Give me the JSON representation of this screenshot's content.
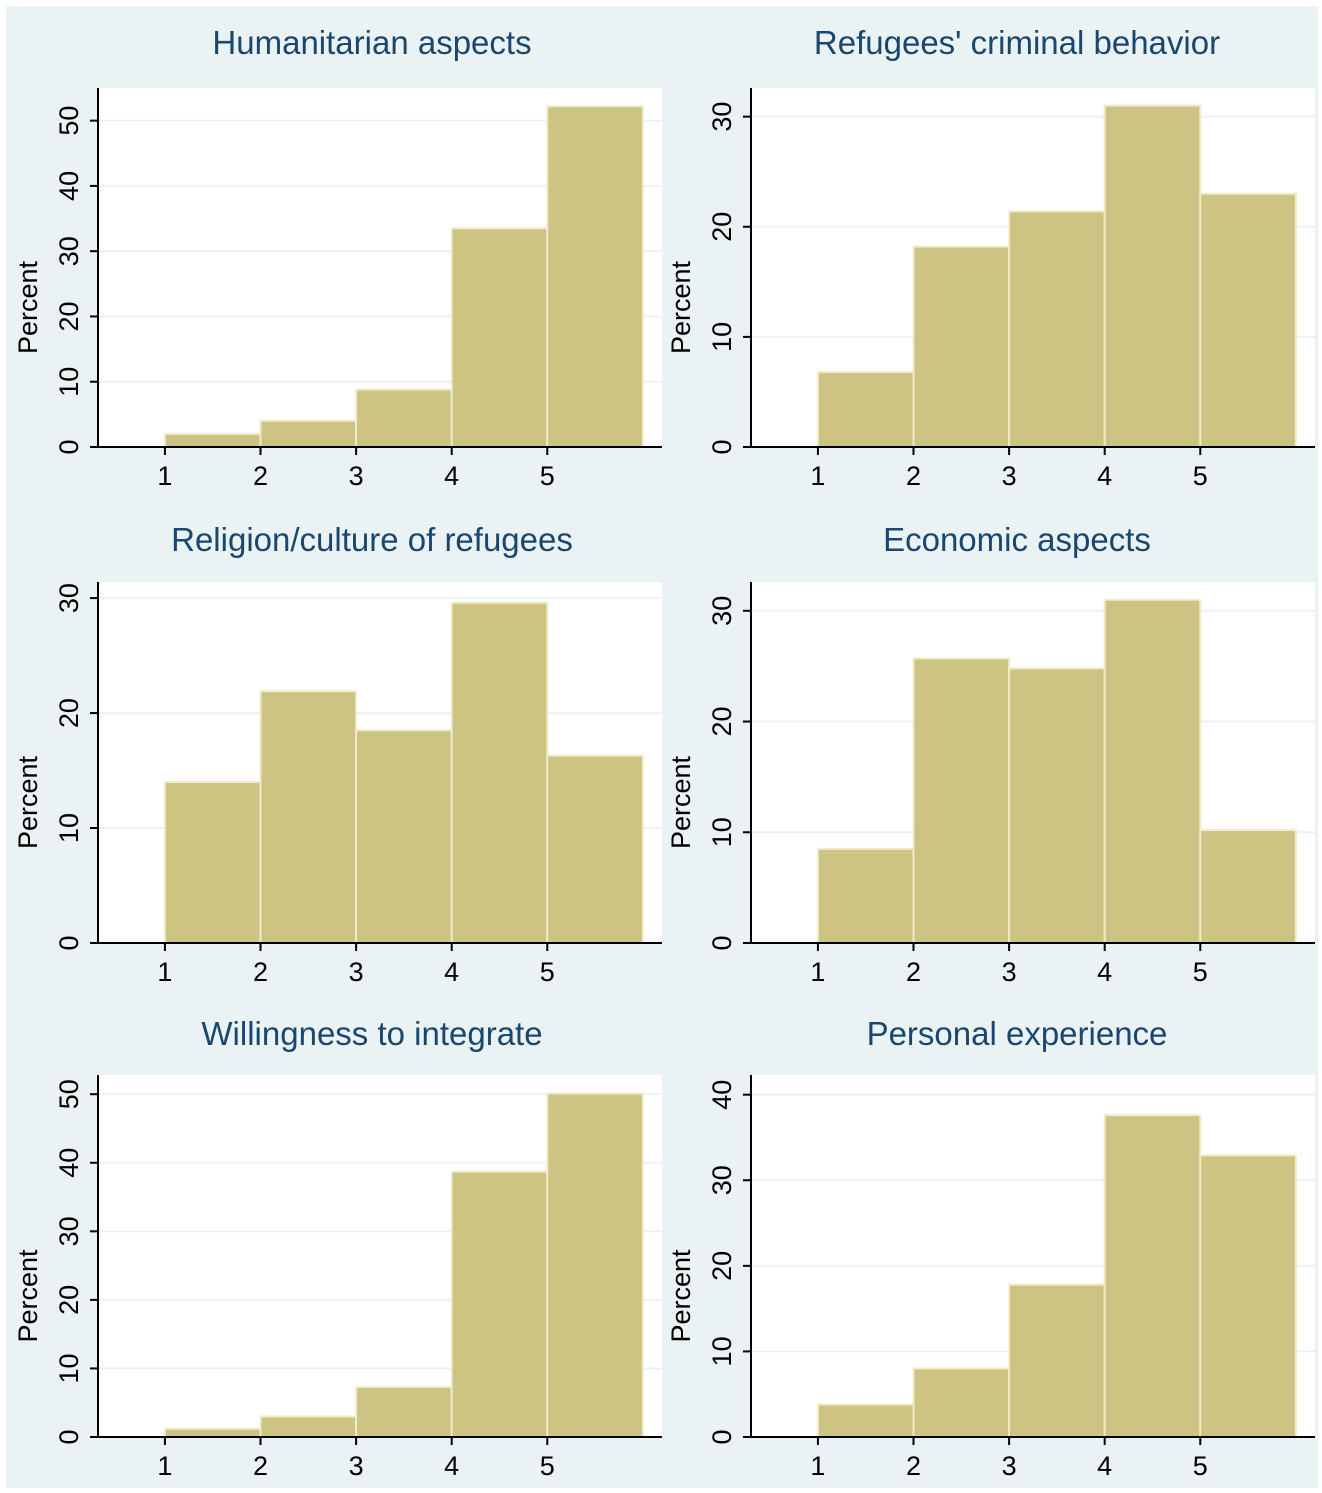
{
  "chart_data": [
    {
      "type": "bar",
      "title": "Humanitarian aspects",
      "ylabel": "Percent",
      "xlabel": "",
      "bins": [
        [
          1,
          2
        ],
        [
          2,
          3
        ],
        [
          3,
          4
        ],
        [
          4,
          5
        ],
        [
          5,
          6
        ]
      ],
      "values": [
        2.0,
        4.0,
        8.8,
        33.5,
        52.2
      ],
      "xticks": [
        1,
        2,
        3,
        4,
        5
      ],
      "yticks": [
        0,
        10,
        20,
        30,
        40,
        50
      ],
      "xlim": [
        0.3,
        6.2
      ],
      "ylim": [
        0,
        55
      ],
      "grid": true,
      "colors": {
        "bar": "#cdc383",
        "bar_edge": "#f0ebc8"
      }
    },
    {
      "type": "bar",
      "title": "Refugees' criminal behavior",
      "ylabel": "Percent",
      "xlabel": "",
      "bins": [
        [
          1,
          2
        ],
        [
          2,
          3
        ],
        [
          3,
          4
        ],
        [
          4,
          5
        ],
        [
          5,
          6
        ]
      ],
      "values": [
        6.8,
        18.2,
        21.4,
        31.0,
        23.0
      ],
      "xticks": [
        1,
        2,
        3,
        4,
        5
      ],
      "yticks": [
        0,
        10,
        20,
        30
      ],
      "xlim": [
        0.3,
        6.2
      ],
      "ylim": [
        0,
        32.6
      ],
      "grid": true,
      "colors": {
        "bar": "#cdc383",
        "bar_edge": "#f0ebc8"
      }
    },
    {
      "type": "bar",
      "title": "Religion/culture of refugees",
      "ylabel": "Percent",
      "xlabel": "",
      "bins": [
        [
          1,
          2
        ],
        [
          2,
          3
        ],
        [
          3,
          4
        ],
        [
          4,
          5
        ],
        [
          5,
          6
        ]
      ],
      "values": [
        14.0,
        21.9,
        18.5,
        29.6,
        16.3
      ],
      "xticks": [
        1,
        2,
        3,
        4,
        5
      ],
      "yticks": [
        0,
        10,
        20,
        30
      ],
      "xlim": [
        0.3,
        6.2
      ],
      "ylim": [
        0,
        31.4
      ],
      "grid": true,
      "colors": {
        "bar": "#cdc383",
        "bar_edge": "#f0ebc8"
      }
    },
    {
      "type": "bar",
      "title": "Economic aspects",
      "ylabel": "Percent",
      "xlabel": "",
      "bins": [
        [
          1,
          2
        ],
        [
          2,
          3
        ],
        [
          3,
          4
        ],
        [
          4,
          5
        ],
        [
          5,
          6
        ]
      ],
      "values": [
        8.5,
        25.7,
        24.8,
        31.0,
        10.2
      ],
      "xticks": [
        1,
        2,
        3,
        4,
        5
      ],
      "yticks": [
        0,
        10,
        20,
        30
      ],
      "xlim": [
        0.3,
        6.2
      ],
      "ylim": [
        0,
        32.6
      ],
      "grid": true,
      "colors": {
        "bar": "#cdc383",
        "bar_edge": "#f0ebc8"
      }
    },
    {
      "type": "bar",
      "title": "Willingness to integrate",
      "ylabel": "Percent",
      "xlabel": "",
      "bins": [
        [
          1,
          2
        ],
        [
          2,
          3
        ],
        [
          3,
          4
        ],
        [
          4,
          5
        ],
        [
          5,
          6
        ]
      ],
      "values": [
        1.2,
        3.0,
        7.3,
        38.7,
        50.1
      ],
      "xticks": [
        1,
        2,
        3,
        4,
        5
      ],
      "yticks": [
        0,
        10,
        20,
        30,
        40,
        50
      ],
      "xlim": [
        0.3,
        6.2
      ],
      "ylim": [
        0,
        52.8
      ],
      "grid": true,
      "colors": {
        "bar": "#cdc383",
        "bar_edge": "#f0ebc8"
      }
    },
    {
      "type": "bar",
      "title": "Personal experience",
      "ylabel": "Percent",
      "xlabel": "",
      "bins": [
        [
          1,
          2
        ],
        [
          2,
          3
        ],
        [
          3,
          4
        ],
        [
          4,
          5
        ],
        [
          5,
          6
        ]
      ],
      "values": [
        3.8,
        8.0,
        17.8,
        37.6,
        32.9
      ],
      "xticks": [
        1,
        2,
        3,
        4,
        5
      ],
      "yticks": [
        0,
        10,
        20,
        30,
        40
      ],
      "xlim": [
        0.3,
        6.2
      ],
      "ylim": [
        0,
        42.3
      ],
      "grid": true,
      "colors": {
        "bar": "#cdc383",
        "bar_edge": "#f0ebc8"
      }
    }
  ]
}
